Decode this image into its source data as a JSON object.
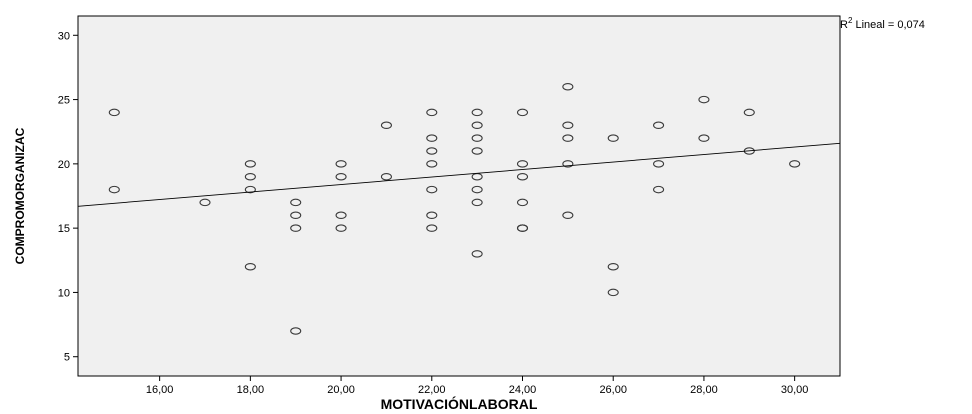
{
  "chart_data": {
    "type": "scatter",
    "xlabel": "MOTIVACIÓNLABORAL",
    "ylabel": "COMPROMORGANIZAC",
    "xlim": [
      14.2,
      31.0
    ],
    "ylim": [
      3.5,
      31.5
    ],
    "xticks": [
      16,
      18,
      20,
      22,
      24,
      26,
      28,
      30
    ],
    "xtick_labels": [
      "16,00",
      "18,00",
      "20,00",
      "22,00",
      "24,00",
      "26,00",
      "28,00",
      "30,00"
    ],
    "yticks": [
      5,
      10,
      15,
      20,
      25,
      30
    ],
    "ytick_labels": [
      "5",
      "10",
      "15",
      "20",
      "25",
      "30"
    ],
    "grid": false,
    "plot_background": "#f0f0f0",
    "marker_color": "#3a3a3a",
    "line_color": "#000000",
    "fit_line": {
      "label_prefix": "R",
      "label_sup": "2",
      "label_suffix": " Lineal = 0,074",
      "x": [
        14.2,
        31.0
      ],
      "y": [
        16.7,
        21.6
      ]
    },
    "points": {
      "x": [
        15,
        15,
        17,
        18,
        18,
        18,
        18,
        19,
        19,
        19,
        19,
        20,
        20,
        20,
        20,
        21,
        21,
        22,
        22,
        22,
        22,
        22,
        22,
        22,
        23,
        23,
        23,
        23,
        23,
        23,
        23,
        23,
        24,
        24,
        24,
        24,
        24,
        24,
        25,
        25,
        25,
        25,
        25,
        26,
        26,
        26,
        27,
        27,
        27,
        28,
        28,
        29,
        29,
        30
      ],
      "y": [
        24,
        18,
        17,
        20,
        19,
        18,
        12,
        17,
        16,
        15,
        7,
        20,
        19,
        16,
        15,
        23,
        19,
        24,
        22,
        21,
        20,
        18,
        16,
        15,
        24,
        23,
        22,
        21,
        19,
        18,
        17,
        13,
        24,
        20,
        19,
        17,
        15,
        15,
        26,
        23,
        22,
        20,
        16,
        22,
        12,
        10,
        23,
        20,
        18,
        25,
        22,
        24,
        21,
        20
      ]
    }
  }
}
